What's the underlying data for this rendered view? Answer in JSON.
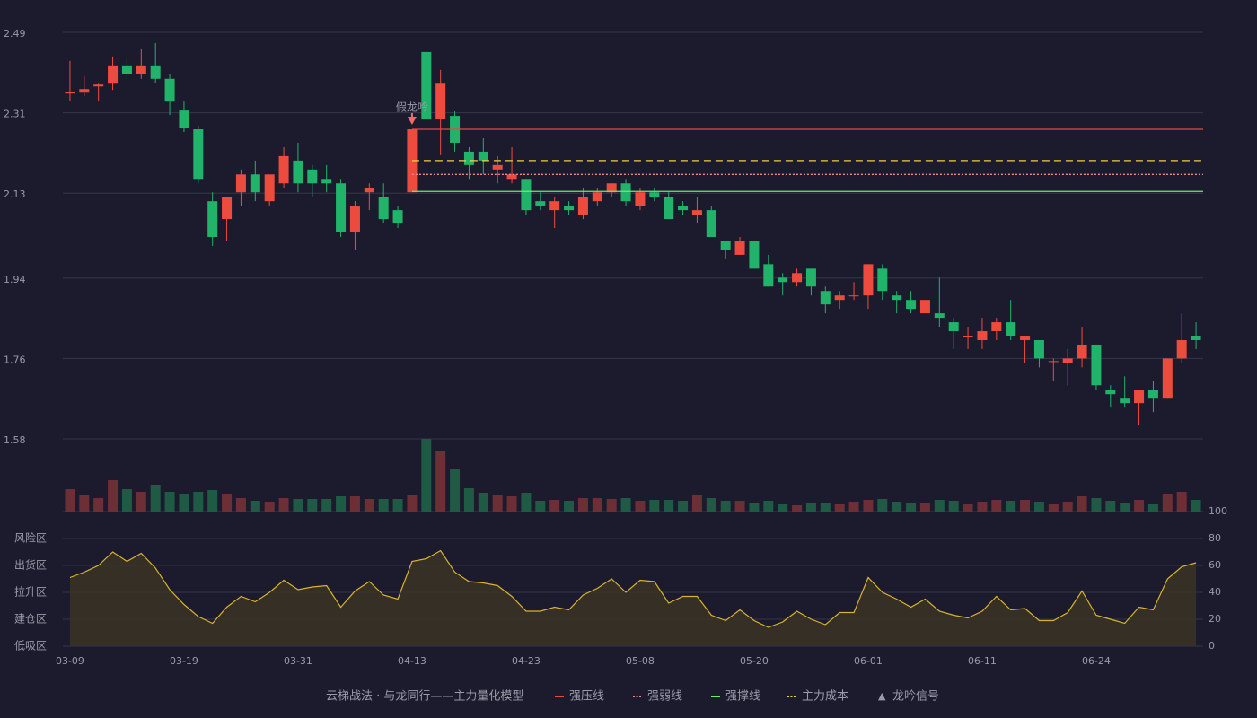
{
  "chart_data": {
    "type": "candlestick",
    "categories": [
      "03-09",
      null,
      null,
      null,
      null,
      null,
      null,
      null,
      "03-19",
      null,
      null,
      null,
      null,
      null,
      null,
      null,
      "03-31",
      null,
      null,
      null,
      null,
      null,
      null,
      null,
      "04-13",
      null,
      null,
      null,
      null,
      null,
      null,
      null,
      "04-23",
      null,
      null,
      null,
      null,
      null,
      null,
      null,
      "05-08",
      null,
      null,
      null,
      null,
      null,
      null,
      null,
      "05-20",
      null,
      null,
      null,
      null,
      null,
      null,
      null,
      "06-01",
      null,
      null,
      null,
      null,
      null,
      null,
      null,
      "06-11",
      null,
      null,
      null,
      null,
      null,
      null,
      null,
      "06-24",
      null,
      null,
      null,
      null,
      null,
      null,
      null
    ],
    "open": [
      2.353,
      2.355,
      2.369,
      2.375,
      2.416,
      2.396,
      2.416,
      2.386,
      2.315,
      2.273,
      2.112,
      2.072,
      2.132,
      2.172,
      2.112,
      2.152,
      2.203,
      2.183,
      2.162,
      2.152,
      2.042,
      2.132,
      2.122,
      2.092,
      2.132,
      2.446,
      2.295,
      2.303,
      2.223,
      2.223,
      2.183,
      2.162,
      2.162,
      2.112,
      2.092,
      2.102,
      2.082,
      2.112,
      2.132,
      2.152,
      2.102,
      2.132,
      2.122,
      2.102,
      2.082,
      2.092,
      2.022,
      1.992,
      2.022,
      1.971,
      1.941,
      1.931,
      1.961,
      1.911,
      1.891,
      1.899,
      1.901,
      1.961,
      1.901,
      1.891,
      1.861,
      1.861,
      1.841,
      1.809,
      1.801,
      1.821,
      1.841,
      1.801,
      1.801,
      1.752,
      1.75,
      1.76,
      1.791,
      1.69,
      1.67,
      1.66,
      1.69,
      1.67,
      1.76,
      1.811
    ],
    "close": [
      2.357,
      2.363,
      2.373,
      2.416,
      2.396,
      2.416,
      2.386,
      2.335,
      2.275,
      2.162,
      2.032,
      2.122,
      2.172,
      2.132,
      2.172,
      2.213,
      2.152,
      2.152,
      2.152,
      2.042,
      2.102,
      2.142,
      2.072,
      2.062,
      2.273,
      2.295,
      2.375,
      2.243,
      2.193,
      2.203,
      2.193,
      2.172,
      2.092,
      2.102,
      2.112,
      2.092,
      2.122,
      2.132,
      2.152,
      2.112,
      2.132,
      2.122,
      2.072,
      2.092,
      2.092,
      2.032,
      2.002,
      2.022,
      1.961,
      1.921,
      1.931,
      1.951,
      1.921,
      1.881,
      1.901,
      1.901,
      1.971,
      1.911,
      1.891,
      1.871,
      1.891,
      1.851,
      1.821,
      1.811,
      1.821,
      1.841,
      1.811,
      1.811,
      1.76,
      1.754,
      1.76,
      1.791,
      1.7,
      1.68,
      1.66,
      1.69,
      1.67,
      1.76,
      1.801,
      1.801
    ],
    "high": [
      2.426,
      2.392,
      2.375,
      2.436,
      2.432,
      2.452,
      2.466,
      2.396,
      2.335,
      2.281,
      2.132,
      2.122,
      2.183,
      2.203,
      2.172,
      2.233,
      2.243,
      2.193,
      2.193,
      2.162,
      2.112,
      2.152,
      2.152,
      2.102,
      2.273,
      2.446,
      2.406,
      2.313,
      2.233,
      2.253,
      2.213,
      2.233,
      2.162,
      2.132,
      2.122,
      2.112,
      2.142,
      2.142,
      2.152,
      2.162,
      2.142,
      2.142,
      2.132,
      2.112,
      2.122,
      2.102,
      2.022,
      2.032,
      2.022,
      1.992,
      1.951,
      1.961,
      1.961,
      1.921,
      1.911,
      1.931,
      1.971,
      1.971,
      1.911,
      1.911,
      1.891,
      1.941,
      1.851,
      1.831,
      1.851,
      1.851,
      1.891,
      1.811,
      1.801,
      1.76,
      1.781,
      1.831,
      1.791,
      1.7,
      1.72,
      1.69,
      1.71,
      1.76,
      1.861,
      1.841
    ],
    "low": [
      2.337,
      2.347,
      2.335,
      2.361,
      2.386,
      2.386,
      2.377,
      2.305,
      2.267,
      2.152,
      2.012,
      2.022,
      2.102,
      2.112,
      2.102,
      2.142,
      2.132,
      2.122,
      2.132,
      2.032,
      2.002,
      2.092,
      2.062,
      2.052,
      2.132,
      2.295,
      2.215,
      2.223,
      2.162,
      2.172,
      2.152,
      2.152,
      2.082,
      2.092,
      2.052,
      2.082,
      2.072,
      2.102,
      2.122,
      2.102,
      2.092,
      2.112,
      2.072,
      2.082,
      2.062,
      2.032,
      1.982,
      1.992,
      1.961,
      1.921,
      1.901,
      1.921,
      1.901,
      1.861,
      1.871,
      1.891,
      1.871,
      1.891,
      1.861,
      1.861,
      1.861,
      1.831,
      1.781,
      1.781,
      1.781,
      1.801,
      1.801,
      1.75,
      1.74,
      1.71,
      1.7,
      1.74,
      1.69,
      1.65,
      1.65,
      1.61,
      1.64,
      1.67,
      1.75,
      1.781
    ],
    "up_color": "#ee4b3f",
    "down_color": "#22b36a",
    "ylim": [
      1.58,
      2.49
    ],
    "yticks": [
      2.49,
      2.31,
      2.13,
      1.94,
      1.76,
      1.58
    ],
    "grid": true,
    "levels": [
      {
        "name": "强压线",
        "value": 2.273,
        "color": "#e44a44",
        "style": "solid",
        "start": 24
      },
      {
        "name": "强弱线",
        "value": 2.172,
        "color": "#f08a8a",
        "style": "dotted",
        "start": 24
      },
      {
        "name": "强撑线",
        "value": 2.134,
        "color": "#66f066",
        "style": "solid",
        "start": 24
      },
      {
        "name": "主力成本",
        "value": 2.203,
        "color": "#f0d040",
        "style": "dashed",
        "start": 24
      }
    ],
    "annotation": {
      "text": "假龙吟",
      "index": 24,
      "color": "#f06a6a"
    },
    "signal": {
      "name": "龙吟信号",
      "marker": "▲",
      "color": "#f0c040"
    },
    "legend_title": "云梯战法 · 与龙同行——主力量化模型",
    "volume": {
      "values": [
        25,
        18,
        15,
        35,
        25,
        22,
        30,
        22,
        20,
        22,
        24,
        20,
        15,
        12,
        11,
        15,
        14,
        14,
        14,
        17,
        17,
        14,
        14,
        14,
        19,
        81,
        68,
        47,
        26,
        21,
        19,
        17,
        21,
        12,
        13,
        12,
        15,
        15,
        14,
        15,
        12,
        13,
        13,
        12,
        18,
        15,
        12,
        12,
        9,
        12,
        8,
        7,
        9,
        9,
        8,
        11,
        13,
        14,
        11,
        9,
        10,
        13,
        12,
        8,
        11,
        13,
        12,
        13,
        11,
        8,
        11,
        17,
        15,
        12,
        10,
        13,
        8,
        20,
        22,
        13
      ],
      "up_color": "#6b2f35",
      "down_color": "#1f5a45"
    },
    "indicator": {
      "values": [
        51,
        55,
        60,
        70,
        63,
        69,
        58,
        42,
        31,
        22,
        17,
        29,
        37,
        33,
        40,
        49,
        42,
        44,
        45,
        29,
        41,
        48,
        38,
        35,
        63,
        65,
        71,
        55,
        48,
        47,
        45,
        37,
        26,
        26,
        29,
        27,
        38,
        43,
        50,
        40,
        49,
        48,
        32,
        37,
        37,
        23,
        19,
        27,
        19,
        14,
        18,
        26,
        20,
        16,
        25,
        25,
        51,
        40,
        35,
        29,
        35,
        26,
        23,
        21,
        26,
        37,
        27,
        28,
        19,
        19,
        25,
        41,
        23,
        20,
        17,
        29,
        27,
        50,
        59,
        62
      ],
      "color": "#d8b42a",
      "ylim": [
        0,
        100
      ],
      "yticks": [
        0,
        20,
        40,
        60,
        80,
        100
      ],
      "ytick_colors": [
        "#ff4a5a",
        "#f0a030",
        "#4a8fe8",
        "#e040e0",
        "#f0a030",
        "#44dd44"
      ],
      "zones": [
        {
          "label": "风险区",
          "value": 80,
          "color": "#f0a030"
        },
        {
          "label": "出货区",
          "value": 60,
          "color": "#e040e0"
        },
        {
          "label": "拉升区",
          "value": 40,
          "color": "#4a8fe8"
        },
        {
          "label": "建仓区",
          "value": 20,
          "color": "#ff6040"
        },
        {
          "label": "低吸区",
          "value": 0,
          "color": "#ff4a5a"
        }
      ]
    }
  }
}
